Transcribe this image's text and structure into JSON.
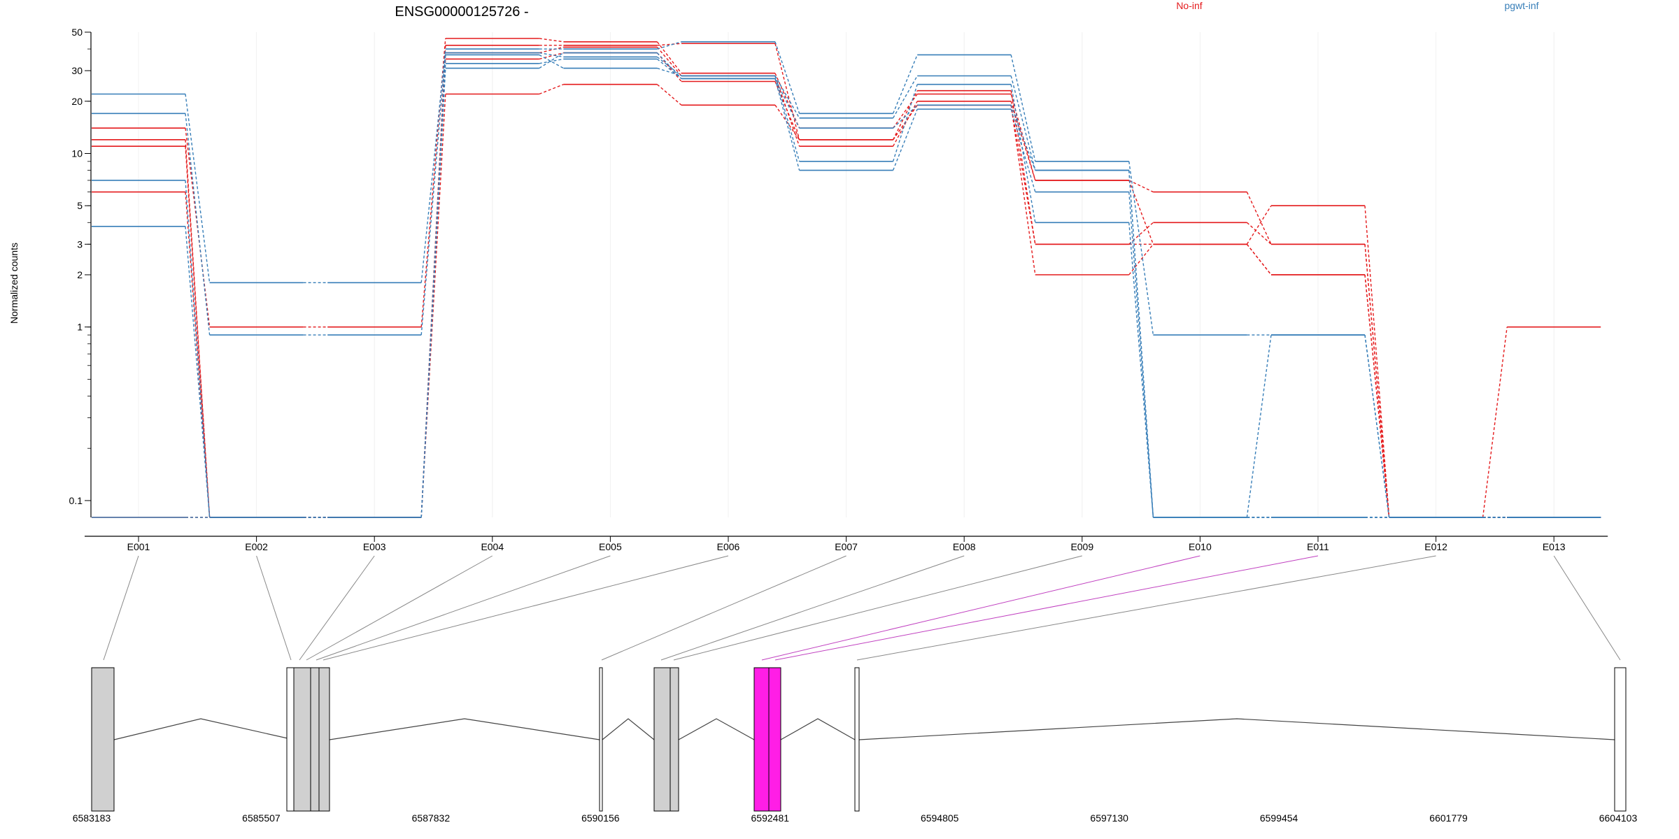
{
  "chart_data": {
    "type": "line",
    "title": "ENSG00000125726 -",
    "xlabel": "",
    "ylabel": "Normalized counts",
    "y_scale": "log",
    "yticks": [
      0.1,
      1,
      2,
      3,
      5,
      10,
      20,
      30,
      50
    ],
    "ylim": [
      0.08,
      50
    ],
    "categories": [
      "E001",
      "E002",
      "E003",
      "E004",
      "E005",
      "E006",
      "E007",
      "E008",
      "E009",
      "E010",
      "E011",
      "E012",
      "E013"
    ],
    "legend": [
      {
        "name": "No-inf",
        "color": "#e41a1c"
      },
      {
        "name": "pgwt-inf",
        "color": "#377eb8"
      }
    ],
    "series": [
      {
        "group": "No-inf",
        "values": [
          14,
          1,
          1,
          46,
          44,
          29,
          14,
          22,
          7,
          6,
          3,
          0.08,
          1
        ]
      },
      {
        "group": "No-inf",
        "values": [
          12,
          0.08,
          0.08,
          42,
          42,
          43,
          12,
          19,
          3,
          4,
          3,
          0.08,
          0.08
        ]
      },
      {
        "group": "No-inf",
        "values": [
          11,
          0.08,
          0.08,
          38,
          41,
          28,
          11,
          20,
          7,
          3,
          5,
          0.08,
          0.08
        ]
      },
      {
        "group": "No-inf",
        "values": [
          6,
          0.08,
          0.08,
          35,
          38,
          26,
          12,
          23,
          3,
          3,
          2,
          0.08,
          0.08
        ]
      },
      {
        "group": "No-inf",
        "values": [
          0.08,
          0.08,
          0.08,
          22,
          25,
          19,
          12,
          19,
          2,
          3,
          2,
          0.08,
          0.08
        ]
      },
      {
        "group": "pgwt-inf",
        "values": [
          22,
          1.8,
          1.8,
          40,
          40,
          44,
          17,
          37,
          9,
          0.9,
          0.9,
          0.08,
          0.08
        ]
      },
      {
        "group": "pgwt-inf",
        "values": [
          17,
          0.9,
          0.9,
          38,
          36,
          28,
          16,
          28,
          8,
          0.08,
          0.9,
          0.08,
          0.08
        ]
      },
      {
        "group": "pgwt-inf",
        "values": [
          7,
          0.08,
          0.08,
          37,
          31,
          28,
          9,
          25,
          4,
          0.08,
          0.08,
          0.08,
          0.08
        ]
      },
      {
        "group": "pgwt-inf",
        "values": [
          3.8,
          0.08,
          0.08,
          33,
          35,
          27,
          8,
          18,
          6,
          0.08,
          0.08,
          0.08,
          0.08
        ]
      },
      {
        "group": "pgwt-inf",
        "values": [
          0.08,
          0.08,
          0.08,
          31,
          38,
          27,
          14,
          19,
          8,
          0.08,
          0.08,
          0.08,
          0.08
        ]
      }
    ],
    "gene_model": {
      "coordinate_ticks": [
        "6583183",
        "6585507",
        "6587832",
        "6590156",
        "6592481",
        "6594805",
        "6597130",
        "6599454",
        "6601779",
        "6604103"
      ],
      "highlight_color": "#ff1ee6",
      "highlighted_exons": [
        "E010",
        "E011"
      ]
    },
    "grid": false,
    "legend_position": "top-right"
  }
}
